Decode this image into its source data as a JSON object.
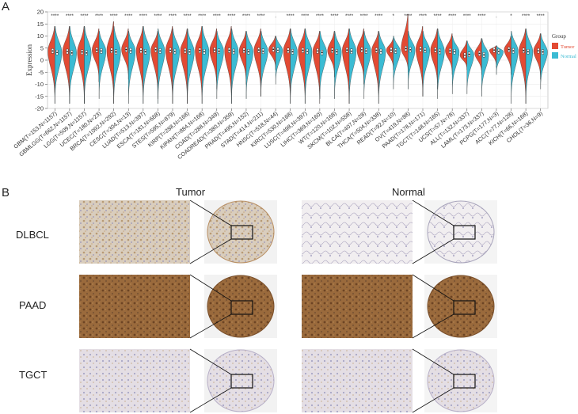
{
  "panel_a": {
    "letter": "A",
    "ylabel": "Expression",
    "legend_title": "Group",
    "legend_items": [
      {
        "label": "Tumor",
        "color": "#e24a33"
      },
      {
        "label": "Normal",
        "color": "#3bbbd3"
      }
    ]
  },
  "panel_b": {
    "letter": "B",
    "col_headers": [
      "Tumor",
      "Normal"
    ],
    "row_labels": [
      "DLBCL",
      "PAAD",
      "TGCT"
    ]
  },
  "chart_data": {
    "type": "violin",
    "ylim": [
      -20,
      20
    ],
    "yticks": [
      -20,
      -15,
      -10,
      -5,
      0,
      5,
      10,
      15,
      20
    ],
    "series": [
      {
        "name": "Tumor"
      },
      {
        "name": "Normal"
      }
    ],
    "categories": [
      "GBM(T=153,N=1157)",
      "GBMLGG(T=662,N=1157)",
      "LGG(T=509,N=1157)",
      "UCEC(T=180,N=23)",
      "BRCA(T=1092,N=292)",
      "CESC(T=304,N=13)",
      "LUAD(T=513,N=397)",
      "ESCA(T=181,N=668)",
      "STES(T=595,N=879)",
      "KIRP(T=288,N=168)",
      "KIPAN(T=884,N=168)",
      "COAD(T=288,N=349)",
      "COADREAD(T=380,N=359)",
      "PRAD(T=495,N=152)",
      "STAD(T=414,N=211)",
      "HNSC(T=518,N=44)",
      "KIRC(T=530,N=168)",
      "LUSC(T=498,N=397)",
      "LIHC(T=369,N=160)",
      "WT(T=120,N=168)",
      "SKCM(T=102,N=558)",
      "BLCA(T=407,N=28)",
      "THCA(T=504,N=338)",
      "READ(T=92,N=10)",
      "OV(T=419,N=88)",
      "PAAD(T=178,N=171)",
      "TGCT(T=148,N=165)",
      "UCS(T=57,N=78)",
      "ALL(T=132,N=337)",
      "LAML(T=173,N=337)",
      "PCPG(T=177,N=3)",
      "ACC(T=77,N=128)",
      "KICH(T=66,N=168)",
      "CHOL(T=36,N=9)"
    ],
    "significance": [
      "****",
      "****",
      "****",
      "****",
      "****",
      "****",
      "****",
      "****",
      "****",
      "****",
      "****",
      "****",
      "****",
      "****",
      "****",
      ".",
      "****",
      "****",
      "****",
      "****",
      "****",
      "****",
      "****",
      "*",
      "****",
      "****",
      "****",
      "****",
      "****",
      "****",
      ".",
      "*",
      "****",
      "****"
    ],
    "tumor_median": [
      3.8,
      3.6,
      3.4,
      4.2,
      4.0,
      4.4,
      4.0,
      4.3,
      4.1,
      3.9,
      4.0,
      4.2,
      4.1,
      4.0,
      4.2,
      4.5,
      4.0,
      4.1,
      3.8,
      4.0,
      4.2,
      4.3,
      4.1,
      4.2,
      4.8,
      4.6,
      4.2,
      3.9,
      2.0,
      2.8,
      4.2,
      4.4,
      4.0,
      3.9
    ],
    "normal_median": [
      3.2,
      3.0,
      3.0,
      3.8,
      3.4,
      3.9,
      3.5,
      3.8,
      3.6,
      3.4,
      3.5,
      3.7,
      3.6,
      3.5,
      3.7,
      4.1,
      3.5,
      3.6,
      3.2,
      3.5,
      3.7,
      3.8,
      3.6,
      3.8,
      4.3,
      4.1,
      3.6,
      3.5,
      2.4,
      2.2,
      3.6,
      3.9,
      3.5,
      3.4
    ],
    "tumor_range": [
      [
        -18,
        14
      ],
      [
        -18,
        14
      ],
      [
        -18,
        14
      ],
      [
        -9,
        13
      ],
      [
        -18,
        16
      ],
      [
        -8,
        13
      ],
      [
        -18,
        14
      ],
      [
        -16,
        12
      ],
      [
        -18,
        14
      ],
      [
        -18,
        13
      ],
      [
        -18,
        14
      ],
      [
        -12,
        13
      ],
      [
        -18,
        14
      ],
      [
        -10,
        12
      ],
      [
        -15,
        13
      ],
      [
        -4,
        10
      ],
      [
        -18,
        13
      ],
      [
        -18,
        13
      ],
      [
        -18,
        12
      ],
      [
        -7,
        12
      ],
      [
        -18,
        13
      ],
      [
        -10,
        13
      ],
      [
        -18,
        12
      ],
      [
        -4,
        9
      ],
      [
        -5,
        19
      ],
      [
        -15,
        14
      ],
      [
        -12,
        13
      ],
      [
        -6,
        11
      ],
      [
        -4,
        8
      ],
      [
        -6,
        9
      ],
      [
        -3,
        6
      ],
      [
        -6,
        10
      ],
      [
        -18,
        13
      ],
      [
        -8,
        11
      ]
    ],
    "normal_range": [
      [
        -18,
        14
      ],
      [
        -18,
        14
      ],
      [
        -18,
        14
      ],
      [
        -16,
        12
      ],
      [
        -18,
        14
      ],
      [
        -18,
        12
      ],
      [
        -18,
        14
      ],
      [
        -18,
        13
      ],
      [
        -18,
        13
      ],
      [
        -18,
        13
      ],
      [
        -18,
        14
      ],
      [
        -16,
        12
      ],
      [
        -18,
        13
      ],
      [
        -16,
        12
      ],
      [
        -15,
        12
      ],
      [
        -10,
        10
      ],
      [
        -18,
        13
      ],
      [
        -18,
        13
      ],
      [
        -16,
        12
      ],
      [
        -16,
        12
      ],
      [
        -18,
        13
      ],
      [
        -16,
        12
      ],
      [
        -18,
        12
      ],
      [
        -12,
        10
      ],
      [
        -12,
        12
      ],
      [
        -15,
        12
      ],
      [
        -16,
        13
      ],
      [
        -14,
        10
      ],
      [
        -14,
        8
      ],
      [
        -15,
        9
      ],
      [
        -6,
        6
      ],
      [
        -18,
        12
      ],
      [
        -18,
        13
      ],
      [
        -12,
        11
      ]
    ]
  }
}
